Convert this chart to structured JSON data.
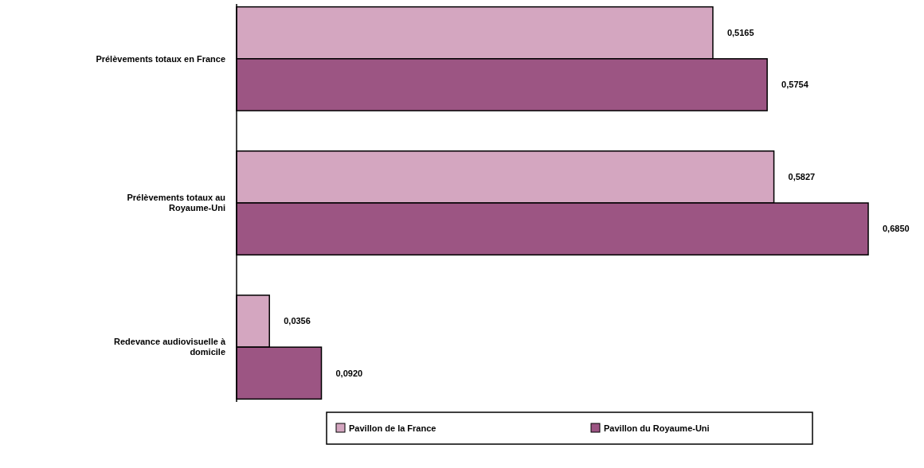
{
  "chart_data": {
    "type": "bar",
    "orientation": "horizontal",
    "categories": [
      "Prélèvements totaux en France",
      "Prélèvements totaux au Royaume-Uni",
      "Redevance audiovisuelle à domicile"
    ],
    "series": [
      {
        "name": "Pavillon de la France",
        "color": "#d4a6c0",
        "values": [
          0.5165,
          0.5827,
          0.0356
        ],
        "value_labels": [
          "0,5165",
          "0,5827",
          "0,0356"
        ]
      },
      {
        "name": "Pavillon du Royaume-Uni",
        "color": "#9c5583",
        "values": [
          0.5754,
          0.685,
          0.092
        ],
        "value_labels": [
          "0,5754",
          "0,6850",
          "0,0920"
        ]
      }
    ],
    "legend": "bottom"
  }
}
